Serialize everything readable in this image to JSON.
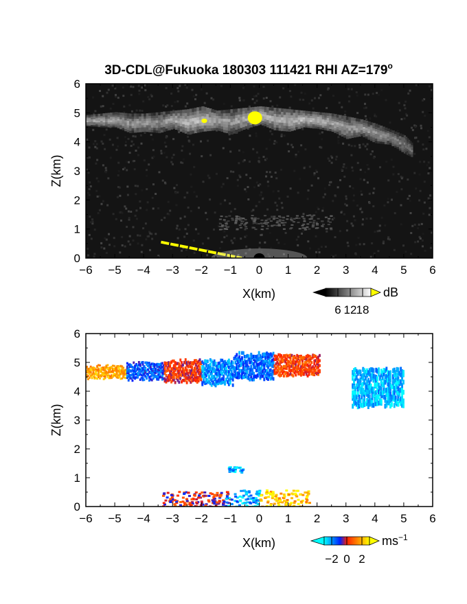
{
  "title": "3D-CDL@Fukuoka 180303 111421 RHI AZ=179",
  "title_degree": "o",
  "chart_data": [
    {
      "type": "heatmap",
      "name": "reflectivity",
      "xlabel": "X(km)",
      "ylabel": "Z(km)",
      "xlim": [
        -6,
        6
      ],
      "ylim": [
        0,
        6
      ],
      "xticks": [
        -6,
        -5,
        -4,
        -3,
        -2,
        -1,
        0,
        1,
        2,
        3,
        4,
        5,
        6
      ],
      "yticks": [
        0,
        1,
        2,
        3,
        4,
        5,
        6
      ],
      "background": "#141414",
      "colorbar": {
        "unit": "dB",
        "ticks": [
          6,
          12,
          18
        ],
        "range": [
          0,
          22
        ],
        "colors": [
          "#000000",
          "#ffffff"
        ],
        "over_color": "#ffff00"
      },
      "cloud_layer": {
        "x": [
          -6,
          -5.5,
          -5,
          -4.5,
          -4,
          -3.5,
          -3,
          -2.5,
          -2,
          -1.5,
          -1,
          -0.5,
          0,
          0.5,
          1,
          1.5,
          2,
          2.5,
          3,
          3.5,
          4,
          4.5,
          5,
          5.3
        ],
        "top": [
          4.9,
          4.95,
          5.0,
          4.95,
          4.95,
          5.0,
          5.05,
          5.1,
          5.2,
          5.05,
          5.1,
          5.15,
          5.2,
          5.15,
          5.1,
          5.05,
          5.0,
          4.95,
          4.85,
          4.75,
          4.6,
          4.4,
          4.2,
          3.9
        ],
        "bottom": [
          4.55,
          4.5,
          4.5,
          4.3,
          4.35,
          4.3,
          4.45,
          4.25,
          4.35,
          4.4,
          4.25,
          4.45,
          4.6,
          4.4,
          4.35,
          4.5,
          4.45,
          4.35,
          4.1,
          4.2,
          3.95,
          3.9,
          3.6,
          3.45
        ],
        "intensity_db": [
          14,
          14,
          15,
          13,
          14,
          12,
          15,
          16,
          17,
          15,
          14,
          16,
          17,
          15,
          16,
          17,
          16,
          15,
          14,
          14,
          13,
          12,
          11,
          9
        ]
      },
      "saturated_patches": [
        {
          "x": [
            -0.4,
            0.1
          ],
          "z": [
            4.6,
            5.05
          ]
        },
        {
          "x": [
            -2.0,
            -1.8
          ],
          "z": [
            4.65,
            4.8
          ]
        }
      ],
      "faint_layer": {
        "x": [
          -1.5,
          2.5
        ],
        "z": [
          1.0,
          1.5
        ],
        "intensity_db": 6
      },
      "ground_line": {
        "x": [
          -3.4,
          -0.6
        ],
        "z": [
          0.55,
          0.0
        ]
      }
    },
    {
      "type": "heatmap",
      "name": "doppler_velocity",
      "xlabel": "X(km)",
      "ylabel": "Z(km)",
      "xlim": [
        -6,
        6
      ],
      "ylim": [
        0,
        6
      ],
      "xticks": [
        -6,
        -5,
        -4,
        -3,
        -2,
        -1,
        0,
        1,
        2,
        3,
        4,
        5,
        6
      ],
      "yticks": [
        0,
        1,
        2,
        3,
        4,
        5,
        6
      ],
      "background": "#ffffff",
      "colorbar": {
        "unit": "ms",
        "unit_exponent": "−1",
        "ticks": [
          "−2",
          "0",
          "2"
        ],
        "tick_values": [
          -2,
          0,
          2
        ],
        "range": [
          -3,
          3
        ],
        "colors": [
          "#00ffff",
          "#0020ff",
          "#ff2000",
          "#ff8000",
          "#ffff00"
        ]
      },
      "velocity_segments": [
        {
          "x": [
            -6,
            -4.6
          ],
          "top": 4.85,
          "bottom": 4.45,
          "v": 1.8
        },
        {
          "x": [
            -4.6,
            -3.3
          ],
          "top": 4.95,
          "bottom": 4.4,
          "v": -1.4
        },
        {
          "x": [
            -3.3,
            -2.0
          ],
          "top": 5.05,
          "bottom": 4.3,
          "v": 0.2
        },
        {
          "x": [
            -2.0,
            -0.9
          ],
          "top": 5.05,
          "bottom": 4.2,
          "v": -1.9
        },
        {
          "x": [
            -0.9,
            0.5
          ],
          "top": 5.3,
          "bottom": 4.4,
          "v": -1.6
        },
        {
          "x": [
            0.5,
            2.1
          ],
          "top": 5.25,
          "bottom": 4.55,
          "v": 0.4
        },
        {
          "x": [
            3.2,
            5.0
          ],
          "top": 4.75,
          "bottom": 3.45,
          "v": -2.3
        }
      ],
      "near_ground": [
        {
          "x": [
            -3.4,
            -1.0
          ],
          "z": [
            0.0,
            0.55
          ],
          "v": 0.0
        },
        {
          "x": [
            -1.2,
            0.0
          ],
          "z": [
            0.0,
            0.6
          ],
          "v": -2.2
        },
        {
          "x": [
            0.0,
            1.7
          ],
          "z": [
            0.0,
            0.6
          ],
          "v": 2.3
        },
        {
          "x": [
            -1.1,
            -0.6
          ],
          "z": [
            1.2,
            1.4
          ],
          "v": -2.5
        }
      ]
    }
  ]
}
